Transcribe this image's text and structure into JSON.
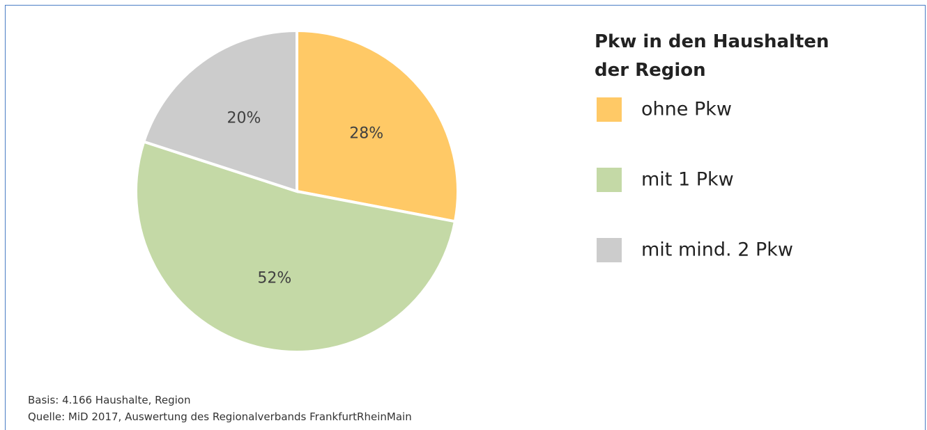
{
  "chart_data": {
    "type": "pie",
    "title": "Pkw in den Haushalten der Region",
    "categories": [
      "ohne Pkw",
      "mit 1 Pkw",
      "mit mind. 2 Pkw"
    ],
    "values": [
      28,
      52,
      20
    ],
    "value_labels": [
      "28%",
      "52%",
      "20%"
    ],
    "colors": [
      "#ffc966",
      "#c4d9a6",
      "#cccccc"
    ],
    "legend": "right",
    "notes": [
      "Basis: 4.166 Haushalte, Region",
      "Quelle: MiD 2017, Auswertung des Regionalverbands FrankfurtRheinMain"
    ]
  }
}
